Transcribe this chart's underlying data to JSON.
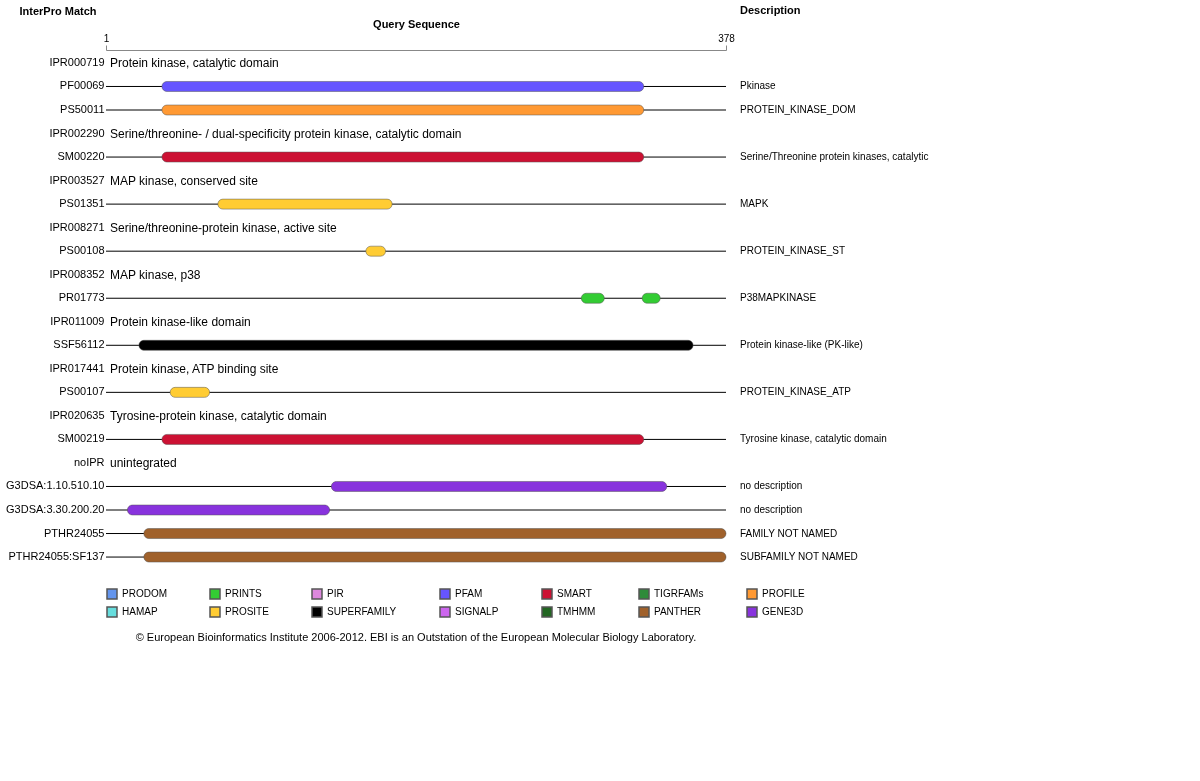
{
  "chart_data": {
    "type": "bar",
    "orientation": "horizontal",
    "xlabel": "Query Sequence",
    "ylabel": "InterPro Match",
    "y2label": "Description",
    "xlim": [
      1,
      378
    ],
    "xticks": [
      1,
      378
    ],
    "legend": "bottom",
    "categories": [
      "IPR000719",
      "PF00069",
      "PS50011",
      "IPR002290",
      "SM00220",
      "IPR003527",
      "PS01351",
      "IPR008271",
      "PS00108",
      "IPR008352",
      "PR01773",
      "IPR011009",
      "SSF56112",
      "IPR017441",
      "PS00107",
      "IPR020635",
      "SM00219",
      "noIPR",
      "G3DSA:1.10.510.10",
      "G3DSA:3.30.200.20",
      "PTHR24055",
      "PTHR24055:SF137"
    ],
    "y2_categories": [
      null,
      "Pkinase",
      "PROTEIN_KINASE_DOM",
      null,
      "Serine/Threonine protein kinases, catalytic",
      null,
      "MAPK",
      null,
      "PROTEIN_KINASE_ST",
      null,
      "P38MAPKINASE",
      null,
      "Protein kinase-like (PK-like)",
      null,
      "PROTEIN_KINASE_ATP",
      null,
      "Tyrosine kinase, catalytic domain",
      null,
      "no description",
      "no description",
      "FAMILY NOT NAMED",
      "SUBFAMILY NOT NAMED"
    ],
    "series": [
      {
        "name": "PRODOM",
        "color": "#6495ed",
        "values": [
          null,
          null,
          null,
          null,
          null,
          null,
          null,
          null,
          null,
          null,
          null,
          null,
          null,
          null,
          null,
          null,
          null,
          null,
          null,
          null,
          null,
          null
        ]
      },
      {
        "name": "PRINTS",
        "color": "#33cc33",
        "values": [
          null,
          null,
          null,
          null,
          null,
          null,
          null,
          null,
          null,
          null,
          14,
          null,
          null,
          null,
          null,
          null,
          null,
          null,
          null,
          null,
          null,
          null
        ],
        "base": [
          null,
          null,
          null,
          null,
          null,
          null,
          null,
          null,
          null,
          null,
          290,
          null,
          null,
          null,
          null,
          null,
          null,
          null,
          null,
          null,
          null,
          null
        ]
      },
      {
        "name": "PIR",
        "color": "#dd88dd",
        "values": [
          null,
          null,
          null,
          null,
          null,
          null,
          null,
          null,
          null,
          null,
          null,
          null,
          null,
          null,
          null,
          null,
          null,
          null,
          null,
          null,
          null,
          null
        ]
      },
      {
        "name": "PFAM",
        "color": "#6655ff",
        "values": [
          null,
          293,
          null,
          null,
          null,
          null,
          null,
          null,
          null,
          null,
          null,
          null,
          null,
          null,
          null,
          null,
          null,
          null,
          null,
          null,
          null,
          null
        ],
        "base": [
          null,
          35,
          null,
          null,
          null,
          null,
          null,
          null,
          null,
          null,
          null,
          null,
          null,
          null,
          null,
          null,
          null,
          null,
          null,
          null,
          null,
          null
        ]
      },
      {
        "name": "SMART",
        "color": "#cc1133",
        "values": [
          null,
          null,
          null,
          null,
          293,
          null,
          null,
          null,
          null,
          null,
          null,
          null,
          null,
          null,
          null,
          null,
          293,
          null,
          null,
          null,
          null,
          null
        ],
        "base": [
          null,
          null,
          null,
          null,
          35,
          null,
          null,
          null,
          null,
          null,
          null,
          null,
          null,
          null,
          null,
          null,
          35,
          null,
          null,
          null,
          null,
          null
        ]
      },
      {
        "name": "TIGRFAMs",
        "color": "#2e8b3a",
        "values": [
          null,
          null,
          null,
          null,
          null,
          null,
          null,
          null,
          null,
          null,
          null,
          null,
          null,
          null,
          null,
          null,
          null,
          null,
          null,
          null,
          null,
          null
        ]
      },
      {
        "name": "PROFILE",
        "color": "#ff9933",
        "values": [
          null,
          null,
          293,
          null,
          null,
          null,
          null,
          null,
          null,
          null,
          null,
          null,
          null,
          null,
          null,
          null,
          null,
          null,
          null,
          null,
          null,
          null
        ],
        "base": [
          null,
          null,
          35,
          null,
          null,
          null,
          null,
          null,
          null,
          null,
          null,
          null,
          null,
          null,
          null,
          null,
          null,
          null,
          null,
          null,
          null,
          null
        ]
      },
      {
        "name": "HAMAP",
        "color": "#66dddd",
        "values": [
          null,
          null,
          null,
          null,
          null,
          null,
          null,
          null,
          null,
          null,
          null,
          null,
          null,
          null,
          null,
          null,
          null,
          null,
          null,
          null,
          null,
          null
        ]
      },
      {
        "name": "PROSITE",
        "color": "#ffcc33",
        "values": [
          null,
          null,
          null,
          null,
          null,
          null,
          106,
          null,
          12,
          null,
          null,
          null,
          null,
          null,
          24,
          null,
          null,
          null,
          null,
          null,
          null,
          null
        ],
        "base": [
          null,
          null,
          null,
          null,
          null,
          null,
          69,
          null,
          159,
          null,
          null,
          null,
          null,
          null,
          40,
          null,
          null,
          null,
          null,
          null,
          null,
          null
        ]
      },
      {
        "name": "SUPERFAMILY",
        "color": "#000000",
        "values": [
          null,
          null,
          null,
          null,
          null,
          null,
          null,
          null,
          null,
          null,
          null,
          null,
          337,
          null,
          null,
          null,
          null,
          null,
          null,
          null,
          null,
          null
        ],
        "base": [
          null,
          null,
          null,
          null,
          null,
          null,
          null,
          null,
          null,
          null,
          null,
          null,
          21,
          null,
          null,
          null,
          null,
          null,
          null,
          null,
          null,
          null
        ]
      },
      {
        "name": "SIGNALP",
        "color": "#cc66ee",
        "values": [
          null,
          null,
          null,
          null,
          null,
          null,
          null,
          null,
          null,
          null,
          null,
          null,
          null,
          null,
          null,
          null,
          null,
          null,
          null,
          null,
          null,
          null
        ]
      },
      {
        "name": "TMHMM",
        "color": "#226622",
        "values": [
          null,
          null,
          null,
          null,
          null,
          null,
          null,
          null,
          null,
          null,
          null,
          null,
          null,
          null,
          null,
          null,
          null,
          null,
          null,
          null,
          null,
          null
        ]
      },
      {
        "name": "PANTHER",
        "color": "#a0612b",
        "values": [
          null,
          null,
          null,
          null,
          null,
          null,
          null,
          null,
          null,
          null,
          null,
          null,
          null,
          null,
          null,
          null,
          null,
          null,
          null,
          null,
          354,
          354
        ],
        "base": [
          null,
          null,
          null,
          null,
          null,
          null,
          null,
          null,
          null,
          null,
          null,
          null,
          null,
          null,
          null,
          null,
          null,
          null,
          null,
          null,
          24,
          24
        ]
      },
      {
        "name": "GENE3D",
        "color": "#8833dd",
        "values": [
          null,
          null,
          null,
          null,
          null,
          null,
          null,
          null,
          null,
          null,
          null,
          null,
          null,
          null,
          null,
          null,
          null,
          null,
          204,
          123,
          null,
          null
        ],
        "base": [
          null,
          null,
          null,
          null,
          null,
          null,
          null,
          null,
          null,
          null,
          null,
          null,
          null,
          null,
          null,
          null,
          null,
          null,
          138,
          14,
          null,
          null
        ]
      },
      {
        "color": "#33cc33",
        "values": [
          null,
          null,
          null,
          null,
          null,
          null,
          null,
          null,
          null,
          null,
          11,
          null,
          null,
          null,
          null,
          null,
          null,
          null,
          null,
          null,
          null,
          null
        ],
        "base": [
          null,
          null,
          null,
          null,
          null,
          null,
          null,
          null,
          null,
          null,
          327,
          null,
          null,
          null,
          null,
          null,
          null,
          null,
          null,
          null,
          null,
          null
        ]
      }
    ],
    "annotations": [
      "Protein kinase, catalytic domain",
      "Serine/threonine- / dual-specificity protein kinase, catalytic domain",
      "MAP kinase, conserved site",
      "Serine/threonine-protein kinase, active site",
      "MAP kinase, p38",
      "Protein kinase-like domain",
      "Protein kinase, ATP binding site",
      "Tyrosine-protein kinase, catalytic domain",
      "unintegrated",
      "© European Bioinformatics Institute 2006-2012. EBI is an Outstation of the European Molecular Biology Laboratory."
    ]
  }
}
